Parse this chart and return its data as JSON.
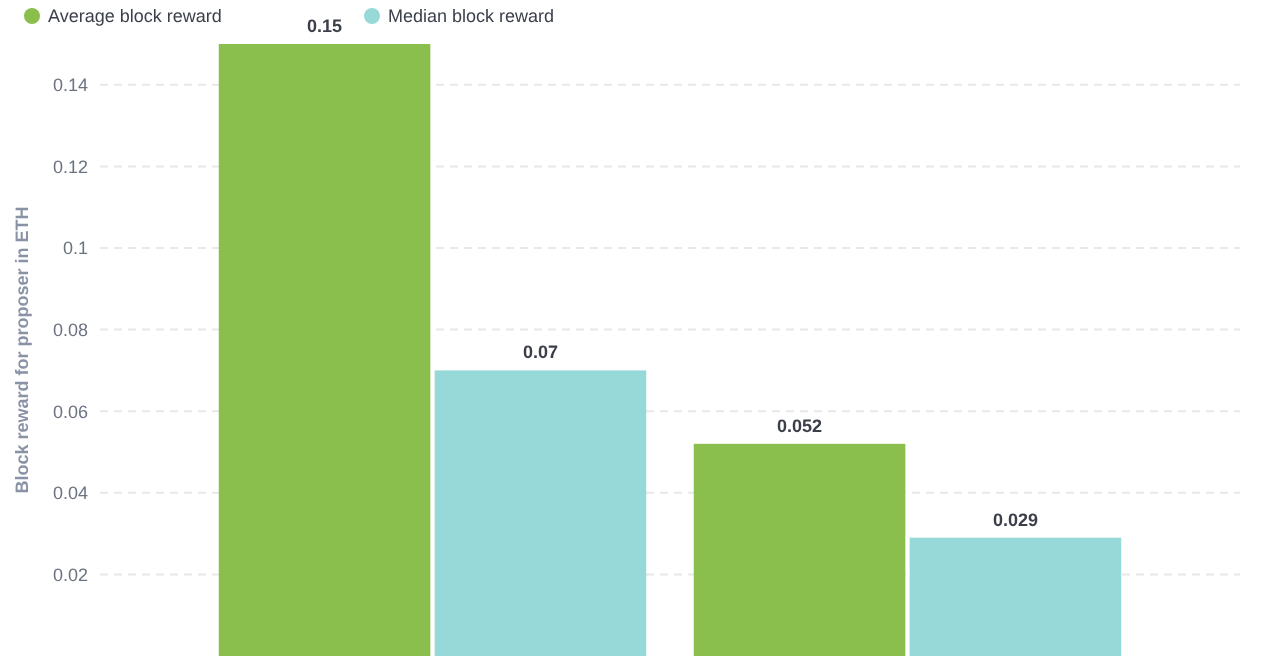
{
  "chart_data": {
    "type": "bar",
    "ylabel": "Block reward for proposer in ETH",
    "categories": [
      null,
      null
    ],
    "series": [
      {
        "name": "Average block reward",
        "color": "#8bbf4d",
        "values": [
          0.15,
          0.052
        ]
      },
      {
        "name": "Median block reward",
        "color": "#97d9d9",
        "values": [
          0.07,
          0.029
        ]
      }
    ],
    "ylim": [
      0,
      0.15
    ],
    "yticks": [
      0.02,
      0.04,
      0.06,
      0.08,
      0.1,
      0.12,
      0.14
    ],
    "grid": "y",
    "legend": "top left",
    "data_labels": true
  }
}
